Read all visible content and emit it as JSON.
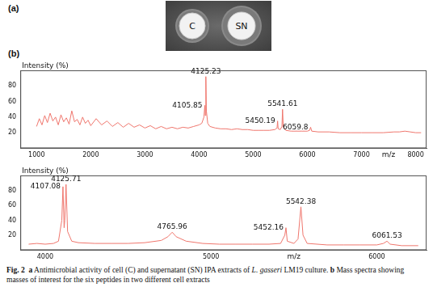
{
  "panel_a": {
    "label": "(a)",
    "wells": [
      "C",
      "SN"
    ]
  },
  "panel_b": {
    "label": "(b)"
  },
  "chart_data": [
    {
      "type": "line",
      "x_label": "m/z",
      "y_label": "Intensity (%)",
      "color": "#ef766d",
      "grid": false,
      "xlim": [
        700,
        8200
      ],
      "xticks": [
        1000,
        2000,
        3000,
        4000,
        5000,
        6000,
        7000,
        8000
      ],
      "ylim": [
        0,
        100
      ],
      "yticks": [
        20,
        40,
        60,
        80
      ],
      "x": [
        1000,
        1050,
        1100,
        1150,
        1200,
        1250,
        1300,
        1350,
        1400,
        1450,
        1500,
        1550,
        1600,
        1650,
        1700,
        1750,
        1800,
        1850,
        1900,
        1950,
        2000,
        2100,
        2200,
        2300,
        2400,
        2500,
        2600,
        2700,
        2800,
        2900,
        3000,
        3100,
        3200,
        3300,
        3400,
        3500,
        3600,
        3700,
        3800,
        3900,
        4000,
        4050,
        4090,
        4105.85,
        4115,
        4125.23,
        4135,
        4160,
        4200,
        4300,
        4400,
        4500,
        4600,
        4700,
        4800,
        4900,
        5000,
        5100,
        5200,
        5300,
        5400,
        5440,
        5450.19,
        5460,
        5500,
        5530,
        5541.61,
        5555,
        5600,
        5700,
        5800,
        5900,
        6000,
        6040,
        6059.8,
        6080,
        6200,
        6400,
        6600,
        6800,
        7000,
        7200,
        7400,
        7600,
        7700,
        7800,
        7900,
        8000,
        8100
      ],
      "values": [
        28,
        38,
        30,
        42,
        33,
        45,
        35,
        40,
        30,
        43,
        34,
        39,
        31,
        48,
        34,
        37,
        30,
        40,
        32,
        36,
        29,
        38,
        30,
        35,
        28,
        33,
        27,
        32,
        27,
        30,
        26,
        29,
        25,
        28,
        25,
        27,
        25,
        27,
        26,
        28,
        30,
        32,
        40,
        55,
        42,
        92,
        48,
        32,
        28,
        26,
        25,
        25,
        24,
        25,
        24,
        24,
        23,
        23,
        23,
        23,
        24,
        26,
        35,
        25,
        24,
        28,
        50,
        27,
        23,
        22,
        22,
        22,
        22,
        23,
        27,
        22,
        21,
        21,
        20,
        20,
        20,
        20,
        20,
        21,
        21,
        22,
        21,
        20,
        20
      ],
      "annotations": [
        {
          "x": 4125.23,
          "y": 92,
          "text": "4125.23"
        },
        {
          "x": 4105.85,
          "y": 55,
          "text": "4105.85"
        },
        {
          "x": 5541.61,
          "y": 50,
          "text": "5541.61"
        },
        {
          "x": 5450.19,
          "y": 35,
          "text": "5450.19"
        },
        {
          "x": 6059.8,
          "y": 27,
          "text": "6059.8"
        }
      ]
    },
    {
      "type": "line",
      "x_label": "m/z",
      "y_label": "Intensity (%)",
      "color": "#ef766d",
      "grid": false,
      "xlim": [
        3850,
        6300
      ],
      "xticks": [
        4000,
        5000,
        6000
      ],
      "ylim": [
        0,
        100
      ],
      "yticks": [
        20,
        40,
        60,
        80
      ],
      "x": [
        3900,
        3950,
        4000,
        4050,
        4080,
        4100,
        4107.08,
        4114,
        4118,
        4125.71,
        4135,
        4160,
        4200,
        4300,
        4400,
        4500,
        4600,
        4700,
        4740,
        4765.96,
        4790,
        4850,
        4950,
        5050,
        5150,
        5250,
        5350,
        5420,
        5445,
        5452.16,
        5460,
        5500,
        5525,
        5542.38,
        5555,
        5580,
        5700,
        5800,
        5900,
        6000,
        6040,
        6061.53,
        6080,
        6150,
        6250
      ],
      "values": [
        8,
        9,
        8,
        9,
        12,
        40,
        85,
        30,
        40,
        88,
        25,
        12,
        10,
        9,
        9,
        9,
        10,
        13,
        18,
        24,
        18,
        12,
        9,
        8,
        8,
        8,
        8,
        9,
        20,
        30,
        12,
        9,
        15,
        58,
        20,
        9,
        7,
        7,
        7,
        7,
        9,
        12,
        8,
        6,
        6
      ],
      "annotations": [
        {
          "x": 4107.08,
          "y": 85,
          "text": "4107.08"
        },
        {
          "x": 4125.71,
          "y": 88,
          "text": "4125.71"
        },
        {
          "x": 4765.96,
          "y": 24,
          "text": "4765.96"
        },
        {
          "x": 5452.16,
          "y": 30,
          "text": "5452.16"
        },
        {
          "x": 5542.38,
          "y": 58,
          "text": "5542.38"
        },
        {
          "x": 6061.53,
          "y": 12,
          "text": "6061.53"
        }
      ]
    }
  ],
  "caption": [
    {
      "text": "Fig. 2",
      "bold": true
    },
    {
      "text": "  a",
      "bold": true
    },
    {
      "text": " Antimicrobial activity of cell (C) and supernatant (SN) IPA extracts of "
    },
    {
      "text": "L. gasseri",
      "italic": true
    },
    {
      "text": " LM19 culture. "
    },
    {
      "text": "b",
      "bold": true
    },
    {
      "text": " Mass spectra showing masses of interest for the six peptides in two different cell extracts"
    }
  ]
}
